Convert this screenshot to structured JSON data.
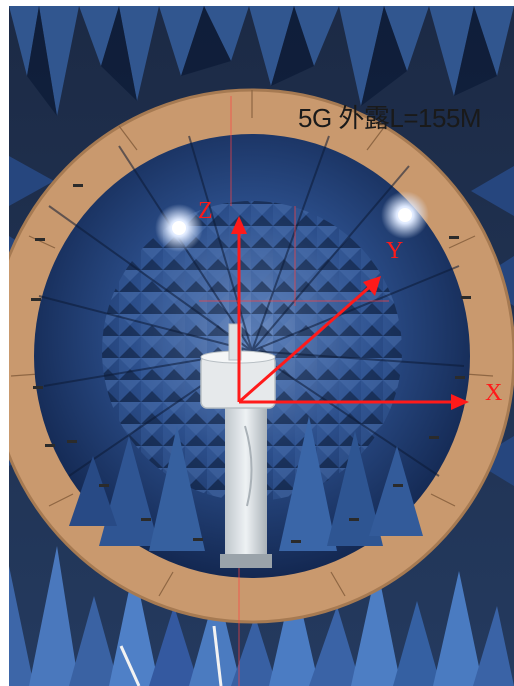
{
  "caption": "5G 外露L=155M",
  "axes": {
    "z_label": "Z",
    "y_label": "Y",
    "x_label": "X",
    "color": "#ff1a1a"
  },
  "colors": {
    "ring": "#c9996e",
    "chamber_blue": "#1e3f7a",
    "absorber_dark": "#0d1c38",
    "light": "#ffffff"
  }
}
